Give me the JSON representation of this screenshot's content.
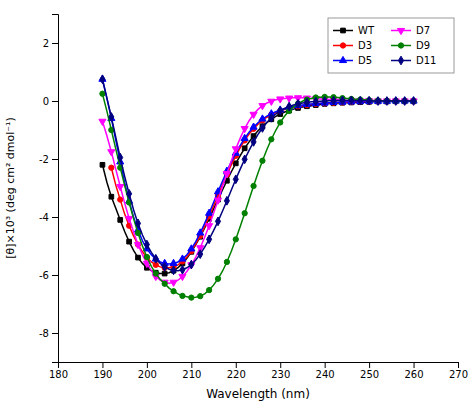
{
  "chart_data": {
    "type": "line",
    "xlabel": "Wavelength (nm)",
    "ylabel": "[θ]×10³ (deg cm² dmol⁻¹)",
    "xlim": [
      180,
      270
    ],
    "ylim": [
      -9,
      3
    ],
    "xticks": [
      180,
      190,
      200,
      210,
      220,
      230,
      240,
      250,
      260,
      270
    ],
    "yticks": [
      -8,
      -6,
      -4,
      -2,
      0,
      2
    ],
    "grid": false,
    "legend": "upper right",
    "series": [
      {
        "name": "WT",
        "color": "#000000",
        "marker": "square",
        "x": [
          190,
          191,
          192,
          193,
          194,
          195,
          196,
          197,
          198,
          199,
          200,
          201,
          202,
          203,
          204,
          205,
          206,
          207,
          208,
          209,
          210,
          211,
          212,
          213,
          214,
          215,
          216,
          217,
          218,
          219,
          220,
          221,
          222,
          223,
          224,
          225,
          226,
          227,
          228,
          229,
          230,
          231,
          232,
          233,
          234,
          235,
          236,
          237,
          238,
          239,
          240,
          241,
          242,
          243,
          244,
          245,
          246,
          247,
          248,
          249,
          250,
          251,
          252,
          253,
          254,
          255,
          256,
          257,
          258,
          259,
          260
        ],
        "values": [
          -2.2,
          -2.8,
          -3.3,
          -3.7,
          -4.1,
          -4.5,
          -4.85,
          -5.15,
          -5.4,
          -5.6,
          -5.75,
          -5.85,
          -5.92,
          -5.95,
          -5.95,
          -5.92,
          -5.85,
          -5.75,
          -5.6,
          -5.42,
          -5.2,
          -4.95,
          -4.68,
          -4.38,
          -4.06,
          -3.73,
          -3.4,
          -3.07,
          -2.75,
          -2.44,
          -2.15,
          -1.88,
          -1.63,
          -1.41,
          -1.21,
          -1.03,
          -0.87,
          -0.74,
          -0.63,
          -0.53,
          -0.45,
          -0.38,
          -0.33,
          -0.28,
          -0.24,
          -0.21,
          -0.18,
          -0.16,
          -0.14,
          -0.12,
          -0.1,
          -0.09,
          -0.08,
          -0.07,
          -0.06,
          -0.06,
          -0.05,
          -0.05,
          -0.04,
          -0.04,
          -0.03,
          -0.03,
          -0.02,
          -0.02,
          -0.02,
          -0.02,
          -0.01,
          -0.01,
          -0.01,
          -0.01,
          -0.01
        ]
      },
      {
        "name": "D3",
        "color": "#ff0000",
        "marker": "circle",
        "x": [
          192,
          193,
          194,
          195,
          196,
          197,
          198,
          199,
          200,
          201,
          202,
          203,
          204,
          205,
          206,
          207,
          208,
          209,
          210,
          211,
          212,
          213,
          214,
          215,
          216,
          217,
          218,
          219,
          220,
          221,
          222,
          223,
          224,
          225,
          226,
          227,
          228,
          229,
          230,
          231,
          232,
          233,
          234,
          235,
          236,
          237,
          238,
          239,
          240,
          241,
          242,
          243,
          244,
          245,
          246,
          247,
          248,
          249,
          250,
          251,
          252,
          253,
          254,
          255,
          256,
          257,
          258,
          259,
          260
        ],
        "values": [
          -2.3,
          -2.9,
          -3.4,
          -3.9,
          -4.3,
          -4.65,
          -4.95,
          -5.2,
          -5.4,
          -5.55,
          -5.65,
          -5.72,
          -5.75,
          -5.75,
          -5.72,
          -5.65,
          -5.53,
          -5.38,
          -5.18,
          -4.93,
          -4.65,
          -4.33,
          -3.98,
          -3.62,
          -3.25,
          -2.88,
          -2.54,
          -2.2,
          -1.89,
          -1.61,
          -1.36,
          -1.14,
          -0.96,
          -0.8,
          -0.67,
          -0.56,
          -0.47,
          -0.4,
          -0.34,
          -0.29,
          -0.25,
          -0.21,
          -0.18,
          -0.16,
          -0.14,
          -0.12,
          -0.1,
          -0.09,
          -0.08,
          -0.07,
          -0.06,
          -0.05,
          -0.05,
          -0.04,
          -0.03,
          -0.03,
          -0.02,
          -0.02,
          -0.02,
          -0.01,
          -0.01,
          -0.01,
          -0.01,
          -0.01,
          0.0,
          0.0,
          0.0,
          0.0,
          0.0
        ]
      },
      {
        "name": "D5",
        "color": "#0000ff",
        "marker": "triangle-up",
        "x": [
          190,
          191,
          192,
          193,
          194,
          195,
          196,
          197,
          198,
          199,
          200,
          201,
          202,
          203,
          204,
          205,
          206,
          207,
          208,
          209,
          210,
          211,
          212,
          213,
          214,
          215,
          216,
          217,
          218,
          219,
          220,
          221,
          222,
          223,
          224,
          225,
          226,
          227,
          228,
          229,
          230,
          231,
          232,
          233,
          234,
          235,
          236,
          237,
          238,
          239,
          240,
          241,
          242,
          243,
          244,
          245,
          246,
          247,
          248,
          249,
          250,
          251,
          252,
          253,
          254,
          255,
          256,
          257,
          258,
          259,
          260
        ],
        "values": [
          0.75,
          0.1,
          -0.6,
          -1.35,
          -2.1,
          -2.82,
          -3.45,
          -4.0,
          -4.45,
          -4.82,
          -5.1,
          -5.3,
          -5.45,
          -5.55,
          -5.6,
          -5.62,
          -5.6,
          -5.55,
          -5.45,
          -5.3,
          -5.1,
          -4.85,
          -4.55,
          -4.22,
          -3.87,
          -3.5,
          -3.13,
          -2.77,
          -2.42,
          -2.1,
          -1.8,
          -1.53,
          -1.29,
          -1.08,
          -0.9,
          -0.75,
          -0.62,
          -0.52,
          -0.44,
          -0.37,
          -0.31,
          -0.26,
          -0.22,
          -0.19,
          -0.16,
          -0.14,
          -0.12,
          -0.1,
          -0.09,
          -0.08,
          -0.07,
          -0.06,
          -0.05,
          -0.04,
          -0.04,
          -0.03,
          -0.03,
          -0.02,
          -0.02,
          -0.02,
          -0.01,
          -0.01,
          -0.01,
          -0.01,
          -0.01,
          0.0,
          0.0,
          0.0,
          0.0,
          0.0,
          0.0
        ]
      },
      {
        "name": "D7",
        "color": "#ff00ff",
        "marker": "triangle-down",
        "x": [
          190,
          191,
          192,
          193,
          194,
          195,
          196,
          197,
          198,
          199,
          200,
          201,
          202,
          203,
          204,
          205,
          206,
          207,
          208,
          209,
          210,
          211,
          212,
          213,
          214,
          215,
          216,
          217,
          218,
          219,
          220,
          221,
          222,
          223,
          224,
          225,
          226,
          227,
          228,
          229,
          230,
          231,
          232,
          233,
          234,
          235,
          236,
          237,
          238,
          239,
          240,
          241,
          242,
          243,
          244,
          245,
          246,
          247,
          248,
          249,
          250,
          251,
          252,
          253,
          254,
          255,
          256,
          257,
          258,
          259,
          260
        ],
        "values": [
          -0.7,
          -1.2,
          -1.75,
          -2.35,
          -2.95,
          -3.52,
          -4.05,
          -4.52,
          -4.95,
          -5.3,
          -5.6,
          -5.85,
          -6.05,
          -6.18,
          -6.25,
          -6.28,
          -6.25,
          -6.18,
          -6.05,
          -5.88,
          -5.65,
          -5.38,
          -5.06,
          -4.7,
          -4.3,
          -3.87,
          -3.42,
          -2.96,
          -2.5,
          -2.06,
          -1.65,
          -1.28,
          -0.95,
          -0.68,
          -0.46,
          -0.29,
          -0.16,
          -0.07,
          -0.01,
          0.04,
          0.07,
          0.09,
          0.1,
          0.11,
          0.11,
          0.11,
          0.1,
          0.09,
          0.08,
          0.07,
          0.06,
          0.05,
          0.04,
          0.04,
          0.03,
          0.02,
          0.02,
          0.02,
          0.01,
          0.01,
          0.01,
          0.01,
          0.0,
          0.0,
          0.0,
          0.0,
          0.0,
          0.0,
          0.0,
          0.0,
          0.0
        ]
      },
      {
        "name": "D9",
        "color": "#008000",
        "marker": "circle",
        "x": [
          190,
          191,
          192,
          193,
          194,
          195,
          196,
          197,
          198,
          199,
          200,
          201,
          202,
          203,
          204,
          205,
          206,
          207,
          208,
          209,
          210,
          211,
          212,
          213,
          214,
          215,
          216,
          217,
          218,
          219,
          220,
          221,
          222,
          223,
          224,
          225,
          226,
          227,
          228,
          229,
          230,
          231,
          232,
          233,
          234,
          235,
          236,
          237,
          238,
          239,
          240,
          241,
          242,
          243,
          244,
          245,
          246,
          247,
          248,
          249,
          250,
          251,
          252,
          253,
          254,
          255,
          256,
          257,
          258,
          259,
          260
        ],
        "values": [
          0.25,
          -0.35,
          -1.0,
          -1.65,
          -2.3,
          -2.92,
          -3.5,
          -4.05,
          -4.55,
          -5.0,
          -5.38,
          -5.7,
          -5.95,
          -6.15,
          -6.3,
          -6.45,
          -6.56,
          -6.65,
          -6.72,
          -6.75,
          -6.78,
          -6.77,
          -6.73,
          -6.65,
          -6.52,
          -6.35,
          -6.13,
          -5.87,
          -5.55,
          -5.18,
          -4.77,
          -4.33,
          -3.87,
          -3.4,
          -2.93,
          -2.48,
          -2.06,
          -1.67,
          -1.32,
          -1.01,
          -0.74,
          -0.52,
          -0.34,
          -0.2,
          -0.09,
          -0.01,
          0.05,
          0.09,
          0.12,
          0.13,
          0.14,
          0.14,
          0.13,
          0.12,
          0.1,
          0.09,
          0.07,
          0.06,
          0.05,
          0.04,
          0.03,
          0.02,
          0.02,
          0.01,
          0.01,
          0.01,
          0.0,
          0.0,
          0.0,
          0.0,
          0.0
        ]
      },
      {
        "name": "D11",
        "color": "#000080",
        "marker": "diamond",
        "x": [
          190,
          191,
          192,
          193,
          194,
          195,
          196,
          197,
          198,
          199,
          200,
          201,
          202,
          203,
          204,
          205,
          206,
          207,
          208,
          209,
          210,
          211,
          212,
          213,
          214,
          215,
          216,
          217,
          218,
          219,
          220,
          221,
          222,
          223,
          224,
          225,
          226,
          227,
          228,
          229,
          230,
          231,
          232,
          233,
          234,
          235,
          236,
          237,
          238,
          239,
          240,
          241,
          242,
          243,
          244,
          245,
          246,
          247,
          248,
          249,
          250,
          251,
          252,
          253,
          254,
          255,
          256,
          257,
          258,
          259,
          260
        ],
        "values": [
          0.75,
          0.1,
          -0.55,
          -1.25,
          -1.95,
          -2.6,
          -3.2,
          -3.75,
          -4.22,
          -4.62,
          -4.95,
          -5.22,
          -5.44,
          -5.6,
          -5.72,
          -5.8,
          -5.84,
          -5.85,
          -5.82,
          -5.75,
          -5.64,
          -5.48,
          -5.28,
          -5.04,
          -4.77,
          -4.47,
          -4.15,
          -3.8,
          -3.44,
          -3.07,
          -2.7,
          -2.35,
          -2.01,
          -1.7,
          -1.41,
          -1.15,
          -0.93,
          -0.74,
          -0.58,
          -0.45,
          -0.34,
          -0.26,
          -0.19,
          -0.14,
          -0.1,
          -0.07,
          -0.05,
          -0.03,
          -0.02,
          -0.01,
          0.0,
          0.01,
          0.01,
          0.02,
          0.02,
          0.02,
          0.02,
          0.01,
          0.01,
          0.01,
          0.01,
          0.0,
          0.0,
          0.0,
          0.0,
          0.0,
          0.0,
          0.0,
          0.0,
          0.0,
          0.0
        ]
      }
    ]
  }
}
